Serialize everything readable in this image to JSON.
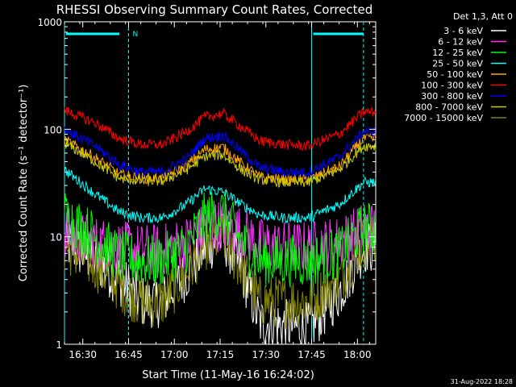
{
  "chart_data": {
    "type": "line",
    "title": "RHESSI Observing Summary Count Rates, Corrected",
    "xlabel": "Start Time (11-May-16 16:24:02)",
    "ylabel": "Corrected Count Rate (s⁻¹ detector⁻¹)",
    "yscale": "log",
    "ylim": [
      1,
      1000
    ],
    "xlim_minutes_after_1624": [
      0,
      102
    ],
    "x_tick_labels": [
      "16:30",
      "16:45",
      "17:00",
      "17:15",
      "17:30",
      "17:45",
      "18:00"
    ],
    "x_tick_minutes": [
      6,
      21,
      36,
      51,
      66,
      81,
      96
    ],
    "y_tick_labels": [
      "1",
      "10",
      "100",
      "1000"
    ],
    "y_tick_values": [
      1,
      10,
      100,
      1000
    ],
    "legend_header": "Det 1,3, Att 0",
    "legend_position": "top-right",
    "footer_date": "31-Aug-2022 18:28",
    "flag_label": "N",
    "x_sample_minutes": [
      0,
      10,
      18,
      25,
      32,
      40,
      46,
      52,
      58,
      64,
      72,
      80,
      90,
      98
    ],
    "series": [
      {
        "name": "3 - 6 keV",
        "color": "#ffffff",
        "values": [
          9,
          6,
          4,
          2.5,
          2.5,
          4.5,
          8,
          10,
          5,
          1.6,
          1.5,
          1.4,
          3,
          8
        ]
      },
      {
        "name": "6 - 12 keV",
        "color": "#ff33ff",
        "values": [
          11,
          9,
          8,
          7.5,
          7.5,
          9,
          12,
          13,
          11,
          8.5,
          8,
          8,
          9,
          12
        ]
      },
      {
        "name": "12 - 25 keV",
        "color": "#00ff00",
        "values": [
          16,
          10,
          6.5,
          6,
          6,
          8,
          15,
          17,
          9,
          6,
          6,
          6,
          7,
          12
        ]
      },
      {
        "name": "25 - 50 keV",
        "color": "#00ffff",
        "values": [
          42,
          25,
          17,
          15,
          15,
          20,
          28,
          26,
          20,
          16,
          15,
          15,
          20,
          32
        ]
      },
      {
        "name": "50 - 100 keV",
        "color": "#ffa500",
        "values": [
          80,
          55,
          38,
          35,
          35,
          46,
          65,
          68,
          48,
          36,
          34,
          34,
          45,
          82
        ]
      },
      {
        "name": "100 - 300 keV",
        "color": "#ff0000",
        "values": [
          150,
          115,
          82,
          72,
          72,
          95,
          130,
          140,
          105,
          78,
          72,
          70,
          90,
          145
        ]
      },
      {
        "name": "300 - 800 keV",
        "color": "#0000ff",
        "values": [
          100,
          70,
          47,
          40,
          40,
          53,
          82,
          88,
          62,
          44,
          40,
          40,
          55,
          95
        ]
      },
      {
        "name": "800 - 7000 keV",
        "color": "#cccc00",
        "values": [
          75,
          50,
          35,
          33,
          33,
          42,
          56,
          58,
          42,
          34,
          32,
          32,
          42,
          70
        ]
      },
      {
        "name": "7000 - 15000 keV",
        "color": "#808000",
        "values": [
          8,
          5.5,
          3.5,
          2.5,
          2.5,
          4.5,
          8.5,
          10,
          5,
          2.5,
          2.5,
          2.5,
          4,
          9
        ]
      }
    ],
    "vertical_markers_minutes": [
      0,
      21,
      81,
      98
    ],
    "cyan_bars_minutes": [
      [
        0,
        18
      ],
      [
        81,
        98
      ]
    ]
  }
}
